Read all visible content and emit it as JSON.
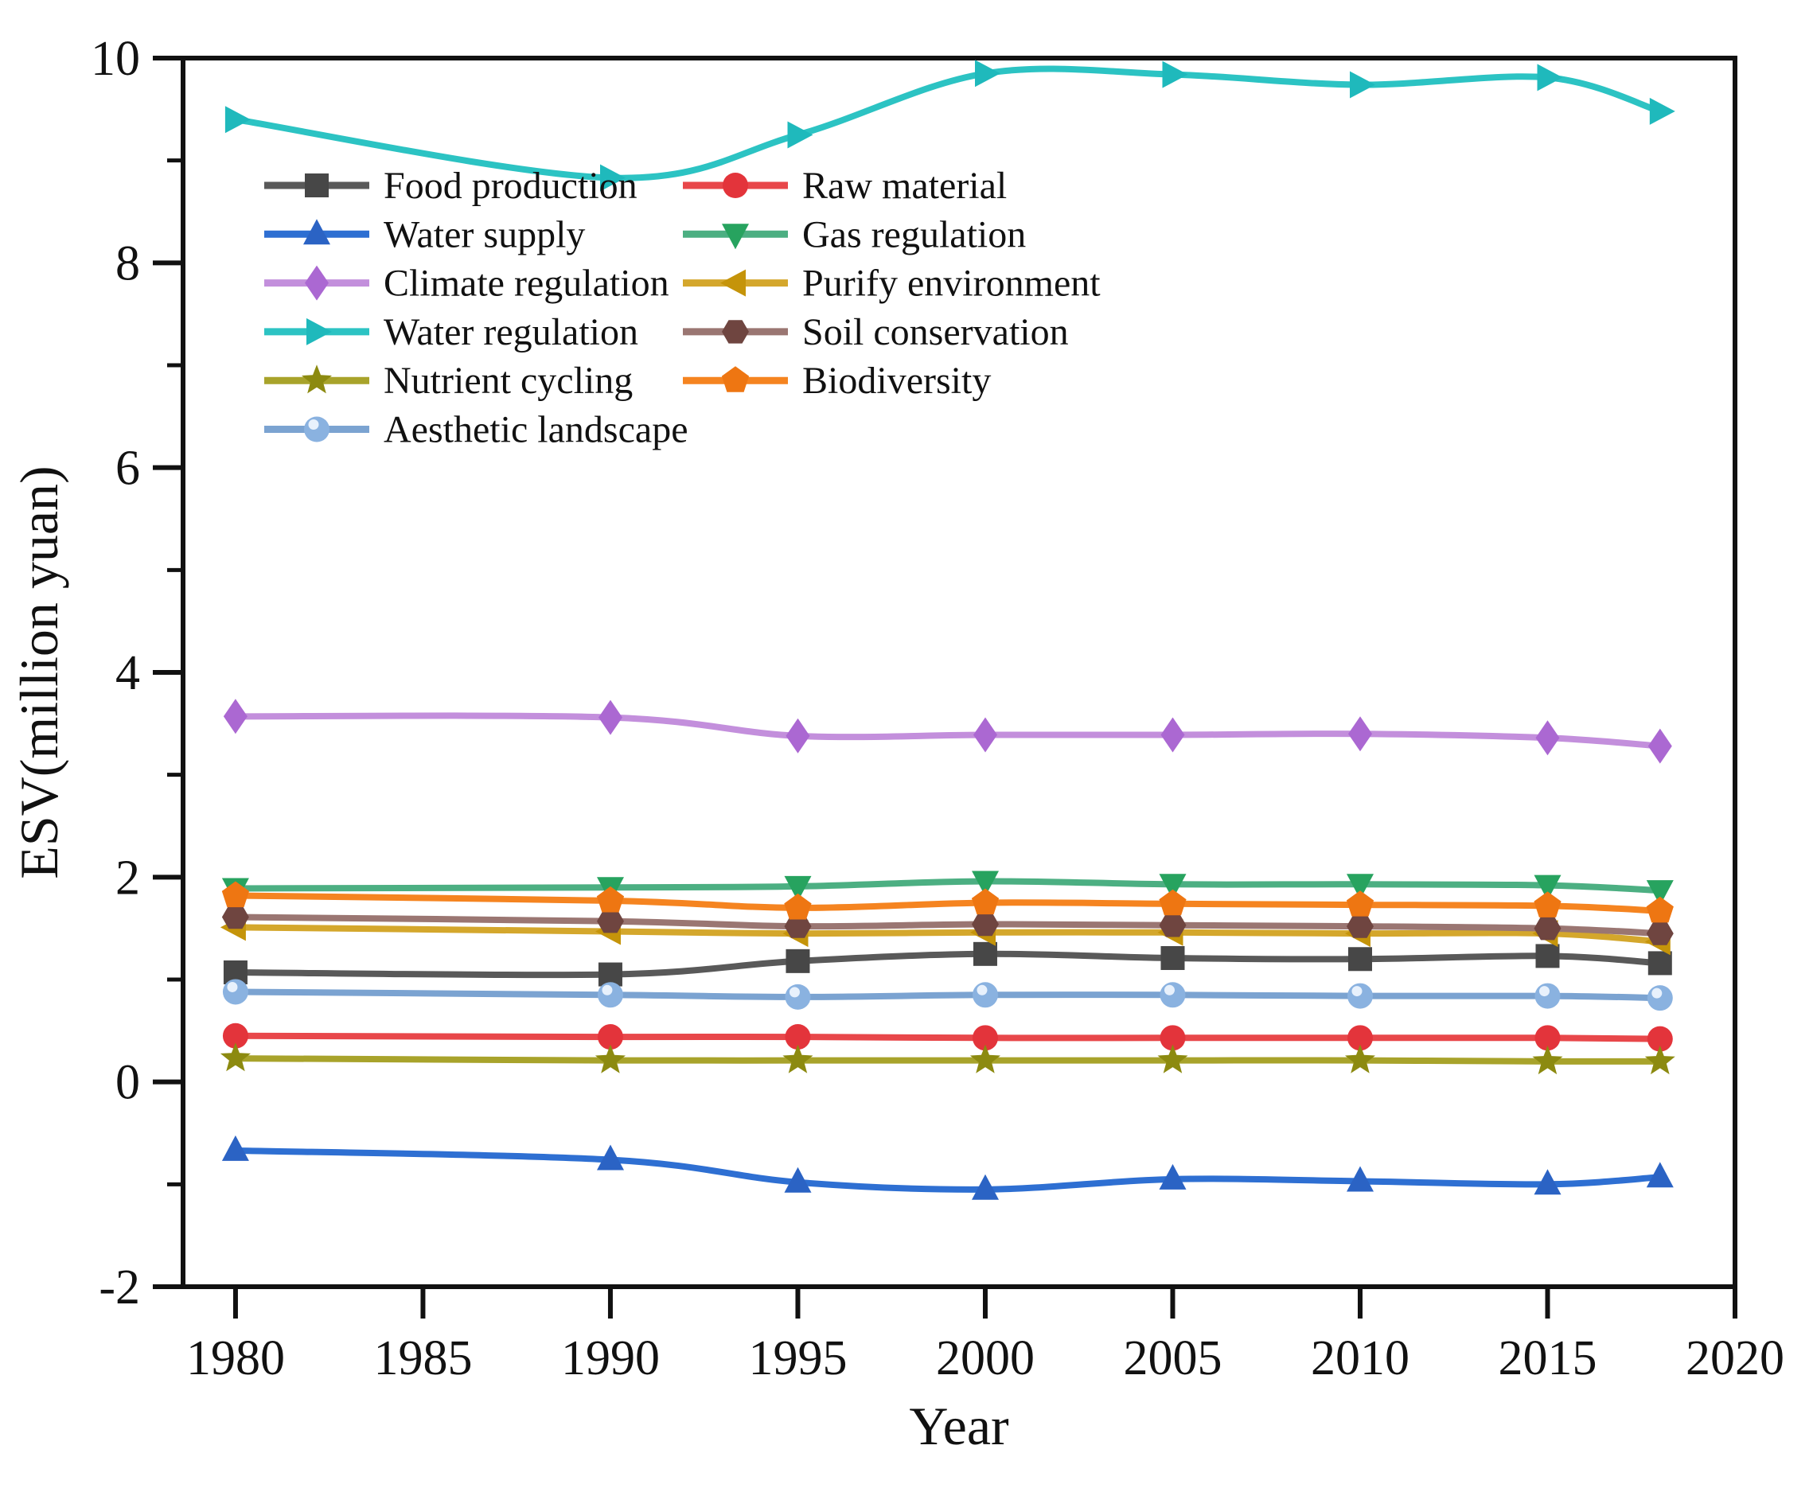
{
  "chart_data": {
    "type": "line",
    "title": "",
    "xlabel": "Year",
    "ylabel": "ESV(million yuan)",
    "xlim": [
      1978.6,
      2020
    ],
    "ylim": [
      -2,
      10
    ],
    "x_ticks": [
      1980,
      1985,
      1990,
      1995,
      2000,
      2005,
      2010,
      2015,
      2020
    ],
    "y_ticks": [
      -2,
      0,
      2,
      4,
      6,
      8,
      10
    ],
    "y_minor_ticks": [
      -1,
      1,
      3,
      5,
      7,
      9
    ],
    "grid": false,
    "legend_position": "upper-left-inside",
    "legend_columns": 2,
    "x": [
      1980,
      1990,
      1995,
      2000,
      2005,
      2010,
      2015,
      2018
    ],
    "series": [
      {
        "name": "Food production",
        "marker": "square",
        "line_color": "#595959",
        "marker_color": "#474747",
        "values": [
          1.07,
          1.05,
          1.18,
          1.25,
          1.21,
          1.2,
          1.23,
          1.16
        ]
      },
      {
        "name": "Raw material",
        "marker": "circle",
        "line_color": "#e8474a",
        "marker_color": "#e3343b",
        "values": [
          0.45,
          0.44,
          0.44,
          0.43,
          0.43,
          0.43,
          0.43,
          0.42
        ]
      },
      {
        "name": "Water supply",
        "marker": "triangle-up",
        "line_color": "#2e6fd2",
        "marker_color": "#2b63c4",
        "values": [
          -0.67,
          -0.76,
          -0.98,
          -1.05,
          -0.95,
          -0.97,
          -1.0,
          -0.93
        ]
      },
      {
        "name": "Gas regulation",
        "marker": "triangle-down",
        "line_color": "#4caf82",
        "marker_color": "#27a35f",
        "values": [
          1.89,
          1.9,
          1.91,
          1.96,
          1.93,
          1.93,
          1.92,
          1.87
        ]
      },
      {
        "name": "Climate regulation",
        "marker": "diamond",
        "line_color": "#c38fdc",
        "marker_color": "#ab68d2",
        "values": [
          3.57,
          3.56,
          3.38,
          3.39,
          3.39,
          3.4,
          3.36,
          3.28
        ]
      },
      {
        "name": "Purify environment",
        "marker": "triangle-left",
        "line_color": "#d4a72c",
        "marker_color": "#c5940a",
        "values": [
          1.51,
          1.47,
          1.45,
          1.46,
          1.46,
          1.45,
          1.45,
          1.37
        ]
      },
      {
        "name": "Water regulation",
        "marker": "triangle-right",
        "line_color": "#2cc3c3",
        "marker_color": "#1fb9bc",
        "values": [
          9.4,
          8.83,
          9.25,
          9.85,
          9.84,
          9.74,
          9.81,
          9.48
        ]
      },
      {
        "name": "Soil conservation",
        "marker": "hexagon",
        "line_color": "#9a7672",
        "marker_color": "#6f4540",
        "values": [
          1.61,
          1.57,
          1.52,
          1.54,
          1.53,
          1.52,
          1.5,
          1.45
        ]
      },
      {
        "name": "Nutrient cycling",
        "marker": "star",
        "line_color": "#a8a32b",
        "marker_color": "#8c8a10",
        "values": [
          0.23,
          0.21,
          0.21,
          0.21,
          0.21,
          0.21,
          0.2,
          0.2
        ]
      },
      {
        "name": "Biodiversity",
        "marker": "pentagon",
        "line_color": "#f58420",
        "marker_color": "#ee7612",
        "values": [
          1.82,
          1.77,
          1.7,
          1.75,
          1.74,
          1.73,
          1.72,
          1.67
        ]
      },
      {
        "name": "Aesthetic landscape",
        "marker": "sphere",
        "line_color": "#7ba3d1",
        "marker_color": "#8ab2e0",
        "values": [
          0.88,
          0.85,
          0.83,
          0.85,
          0.85,
          0.84,
          0.84,
          0.82
        ]
      }
    ]
  }
}
